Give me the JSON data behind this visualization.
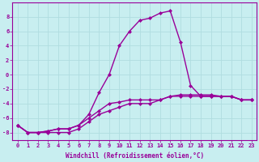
{
  "xlabel": "Windchill (Refroidissement éolien,°C)",
  "background_color": "#c8eef0",
  "grid_color": "#b0dde0",
  "line_color": "#990099",
  "hours": [
    0,
    1,
    2,
    3,
    4,
    5,
    6,
    7,
    8,
    9,
    10,
    11,
    12,
    13,
    14,
    15,
    16,
    17,
    18,
    19,
    20,
    21,
    22,
    23
  ],
  "line1": [
    -7,
    -8,
    -8,
    -8,
    -8,
    -8,
    -7.5,
    -6.5,
    -5.5,
    -5,
    -4.5,
    -4,
    -4,
    -4,
    -3.5,
    -3,
    -3,
    -3,
    -3,
    -3,
    -3,
    -3,
    -3.5,
    -3.5
  ],
  "line2": [
    -7,
    -8,
    -8,
    -7.8,
    -7.5,
    -7.5,
    -7,
    -6,
    -5,
    -4,
    -3.8,
    -3.5,
    -3.5,
    -3.5,
    -3.5,
    -3,
    -2.8,
    -2.8,
    -2.8,
    -2.8,
    -3,
    -3,
    -3.5,
    -3.5
  ],
  "line3": [
    -7,
    -8,
    -8,
    -7.8,
    -7.5,
    -7.5,
    -7,
    -5.5,
    -2.5,
    0,
    4,
    6,
    7.5,
    7.8,
    8.5,
    8.8,
    4.5,
    -1.5,
    -3,
    -3,
    -3,
    -3,
    -3.5,
    -3.5
  ],
  "ylim": [
    -9,
    10
  ],
  "yticks": [
    -8,
    -6,
    -4,
    -2,
    0,
    2,
    4,
    6,
    8
  ],
  "marker": "D",
  "marker_size": 2,
  "line_width": 1.0,
  "tick_fontsize": 5.0,
  "xlabel_fontsize": 5.5
}
